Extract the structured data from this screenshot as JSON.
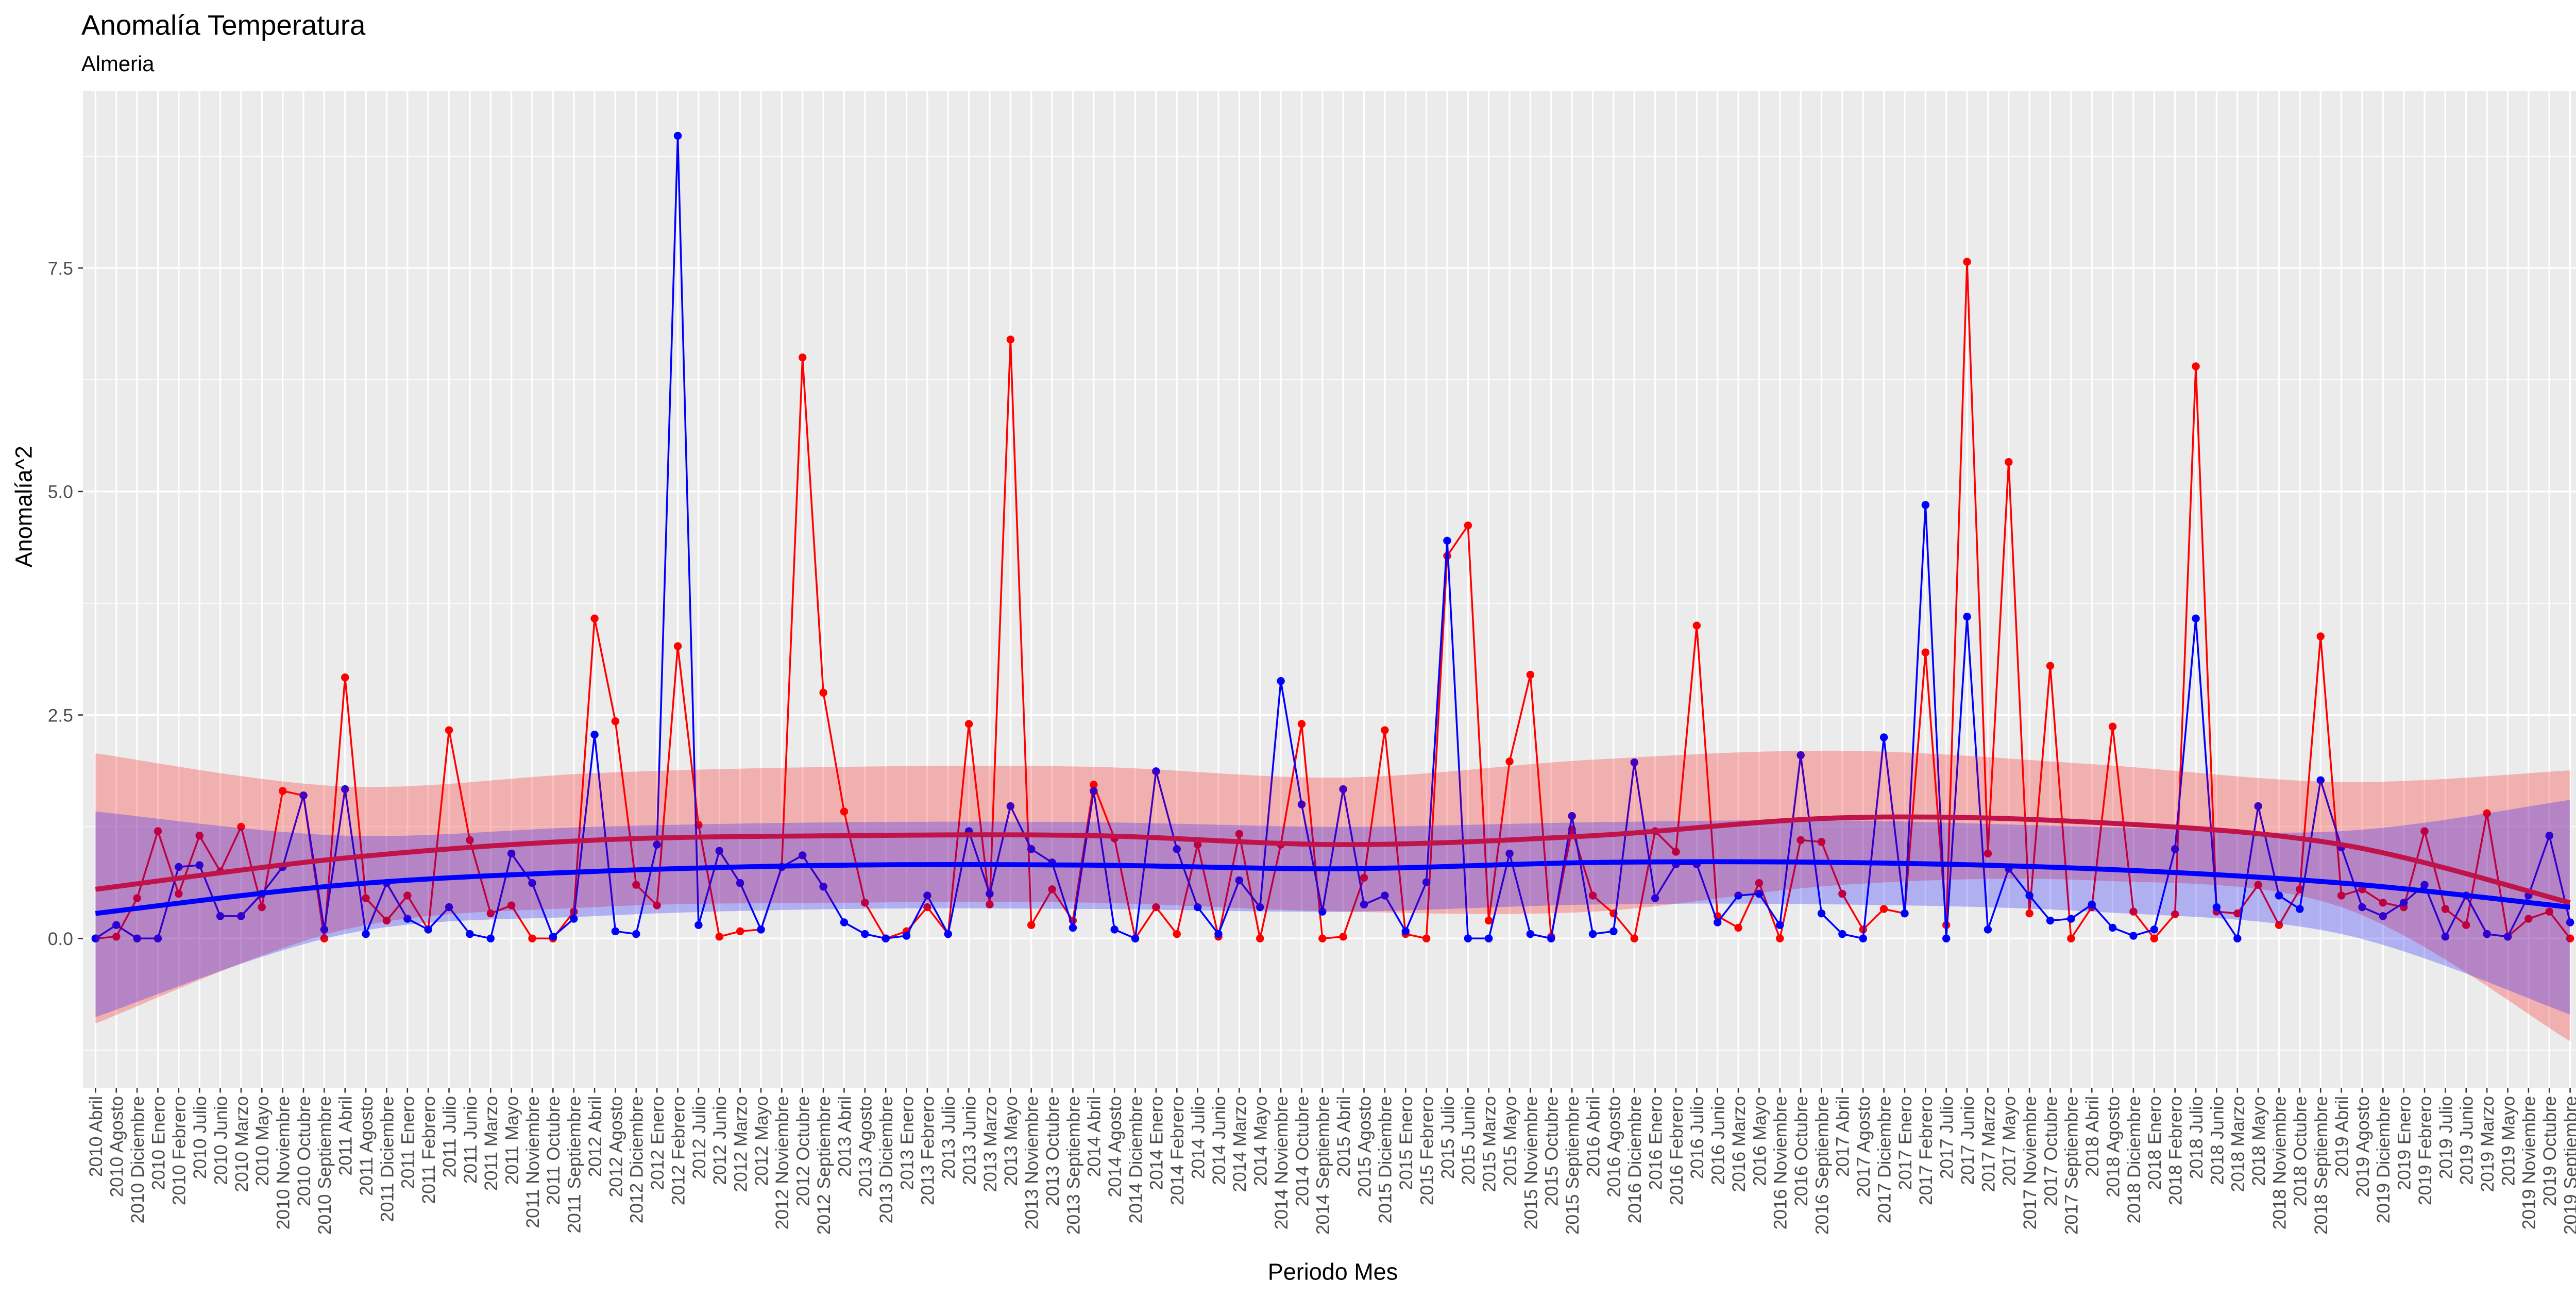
{
  "chart_data": {
    "type": "line",
    "title": "Anomalía Temperatura",
    "subtitle": "Almeria",
    "x_label": "Periodo Mes",
    "y_label": "Anomalía^2",
    "categories": [
      "2010 Abril",
      "2010 Agosto",
      "2010 Diciembre",
      "2010 Enero",
      "2010 Febrero",
      "2010 Julio",
      "2010 Junio",
      "2010 Marzo",
      "2010 Mayo",
      "2010 Noviembre",
      "2010 Octubre",
      "2010 Septiembre",
      "2011 Abril",
      "2011 Agosto",
      "2011 Diciembre",
      "2011 Enero",
      "2011 Febrero",
      "2011 Julio",
      "2011 Junio",
      "2011 Marzo",
      "2011 Mayo",
      "2011 Noviembre",
      "2011 Octubre",
      "2011 Septiembre",
      "2012 Abril",
      "2012 Agosto",
      "2012 Diciembre",
      "2012 Enero",
      "2012 Febrero",
      "2012 Julio",
      "2012 Junio",
      "2012 Marzo",
      "2012 Mayo",
      "2012 Noviembre",
      "2012 Octubre",
      "2012 Septiembre",
      "2013 Abril",
      "2013 Agosto",
      "2013 Diciembre",
      "2013 Enero",
      "2013 Febrero",
      "2013 Julio",
      "2013 Junio",
      "2013 Marzo",
      "2013 Mayo",
      "2013 Noviembre",
      "2013 Octubre",
      "2013 Septiembre",
      "2014 Abril",
      "2014 Agosto",
      "2014 Diciembre",
      "2014 Enero",
      "2014 Febrero",
      "2014 Julio",
      "2014 Junio",
      "2014 Marzo",
      "2014 Mayo",
      "2014 Noviembre",
      "2014 Octubre",
      "2014 Septiembre",
      "2015 Abril",
      "2015 Agosto",
      "2015 Diciembre",
      "2015 Enero",
      "2015 Febrero",
      "2015 Julio",
      "2015 Junio",
      "2015 Marzo",
      "2015 Mayo",
      "2015 Noviembre",
      "2015 Octubre",
      "2015 Septiembre",
      "2016 Abril",
      "2016 Agosto",
      "2016 Diciembre",
      "2016 Enero",
      "2016 Febrero",
      "2016 Julio",
      "2016 Junio",
      "2016 Marzo",
      "2016 Mayo",
      "2016 Noviembre",
      "2016 Octubre",
      "2016 Septiembre",
      "2017 Abril",
      "2017 Agosto",
      "2017 Diciembre",
      "2017 Enero",
      "2017 Febrero",
      "2017 Julio",
      "2017 Junio",
      "2017 Marzo",
      "2017 Mayo",
      "2017 Noviembre",
      "2017 Octubre",
      "2017 Septiembre",
      "2018 Abril",
      "2018 Agosto",
      "2018 Diciembre",
      "2018 Enero",
      "2018 Febrero",
      "2018 Julio",
      "2018 Junio",
      "2018 Marzo",
      "2018 Mayo",
      "2018 Noviembre",
      "2018 Octubre",
      "2018 Septiembre",
      "2019 Abril",
      "2019 Agosto",
      "2019 Diciembre",
      "2019 Enero",
      "2019 Febrero",
      "2019 Julio",
      "2019 Junio",
      "2019 Marzo",
      "2019 Mayo",
      "2019 Noviembre",
      "2019 Octubre",
      "2019 Septiembre"
    ],
    "series": [
      {
        "color": "#ff0000",
        "values": [
          0,
          0.02,
          0.45,
          1.2,
          0.5,
          1.15,
          0.75,
          1.25,
          0.35,
          1.65,
          1.6,
          0,
          2.92,
          0.45,
          0.2,
          0.48,
          0.1,
          2.33,
          1.1,
          0.28,
          0.37,
          0,
          0,
          0.3,
          3.58,
          2.43,
          0.6,
          0.37,
          3.27,
          1.27,
          0.02,
          0.08,
          0.1,
          0.8,
          6.5,
          2.75,
          1.42,
          0.4,
          0,
          0.08,
          0.35,
          0.05,
          2.4,
          0.38,
          6.7,
          0.15,
          0.55,
          0.2,
          1.72,
          1.12,
          0,
          0.35,
          0.05,
          1.05,
          0.02,
          1.17,
          0,
          1.05,
          2.4,
          0,
          0.02,
          0.68,
          2.33,
          0.05,
          0,
          4.28,
          4.62,
          0.2,
          1.98,
          2.95,
          0.02,
          1.22,
          0.48,
          0.28,
          0,
          1.2,
          0.97,
          3.5,
          0.25,
          0.12,
          0.62,
          0,
          1.1,
          1.08,
          0.5,
          0.1,
          0.33,
          0.28,
          3.2,
          0.15,
          7.57,
          0.95,
          5.33,
          0.28,
          3.05,
          0,
          0.35,
          2.37,
          0.3,
          0,
          0.27,
          6.4,
          0.3,
          0.28,
          0.6,
          0.15,
          0.55,
          3.38,
          0.48,
          0.55,
          0.4,
          0.35,
          1.2,
          0.33,
          0.15,
          1.4,
          0.02,
          0.22,
          0.3,
          0
        ]
      },
      {
        "color": "#0000ff",
        "values": [
          0,
          0.15,
          0,
          0,
          0.8,
          0.82,
          0.25,
          0.25,
          0.5,
          0.8,
          1.6,
          0.1,
          1.67,
          0.05,
          0.62,
          0.22,
          0.1,
          0.35,
          0.05,
          0,
          0.95,
          0.62,
          0.02,
          0.22,
          2.28,
          0.08,
          0.05,
          1.05,
          8.98,
          0.15,
          0.98,
          0.62,
          0.1,
          0.8,
          0.93,
          0.58,
          0.18,
          0.05,
          0,
          0.03,
          0.48,
          0.05,
          1.2,
          0.5,
          1.48,
          1,
          0.85,
          0.12,
          1.65,
          0.1,
          0,
          1.87,
          1,
          0.35,
          0.05,
          0.65,
          0.35,
          2.88,
          1.5,
          0.3,
          1.67,
          0.38,
          0.48,
          0.08,
          0.63,
          4.45,
          0,
          0,
          0.95,
          0.05,
          0,
          1.37,
          0.05,
          0.08,
          1.97,
          0.45,
          0.83,
          0.83,
          0.18,
          0.48,
          0.5,
          0.15,
          2.05,
          0.28,
          0.05,
          0,
          2.25,
          0.28,
          4.85,
          0,
          3.6,
          0.1,
          0.78,
          0.48,
          0.2,
          0.22,
          0.38,
          0.12,
          0.03,
          0.1,
          1,
          3.58,
          0.35,
          0,
          1.48,
          0.48,
          0.33,
          1.77,
          1.02,
          0.35,
          0.25,
          0.4,
          0.6,
          0.02,
          0.48,
          0.05,
          0.02,
          0.48,
          1.15,
          0.18
        ]
      }
    ],
    "smooth": [
      {
        "color": "#c0134a",
        "fill": "rgba(255,0,0,0.25)",
        "x": [
          "2010 Abril",
          "2011 Abril",
          "2012 Abril",
          "2013 Abril",
          "2014 Abril",
          "2015 Abril",
          "2016 Abril",
          "2017 Abril",
          "2018 Abril",
          "2019 Abril",
          "2019 Septiembre"
        ],
        "values": [
          0.55,
          0.9,
          1.1,
          1.15,
          1.15,
          1.05,
          1.15,
          1.35,
          1.3,
          1.05,
          0.4
        ],
        "upper": [
          2.07,
          1.7,
          1.85,
          1.92,
          1.92,
          1.8,
          2.0,
          2.1,
          1.95,
          1.75,
          1.88
        ],
        "lower": [
          -0.95,
          0.1,
          0.35,
          0.4,
          0.4,
          0.3,
          0.3,
          0.6,
          0.65,
          0.35,
          -1.15
        ]
      },
      {
        "color": "#0000ff",
        "fill": "rgba(0,0,255,0.25)",
        "x": [
          "2010 Abril",
          "2011 Abril",
          "2012 Abril",
          "2013 Abril",
          "2014 Abril",
          "2015 Abril",
          "2016 Abril",
          "2017 Abril",
          "2018 Abril",
          "2019 Abril",
          "2019 Septiembre"
        ],
        "values": [
          0.28,
          0.6,
          0.75,
          0.82,
          0.82,
          0.78,
          0.85,
          0.85,
          0.78,
          0.62,
          0.35
        ],
        "upper": [
          1.42,
          1.15,
          1.25,
          1.3,
          1.3,
          1.25,
          1.3,
          1.32,
          1.25,
          1.2,
          1.55
        ],
        "lower": [
          -0.88,
          0.05,
          0.25,
          0.33,
          0.33,
          0.3,
          0.38,
          0.38,
          0.3,
          0.05,
          -0.85
        ]
      }
    ],
    "ylim": [
      -1.67,
      9.48
    ],
    "yticks": [
      {
        "value": 0,
        "label": "0.0"
      },
      2.5,
      {
        "value": 5,
        "label": "5.0"
      },
      7.5
    ],
    "grid": true
  }
}
